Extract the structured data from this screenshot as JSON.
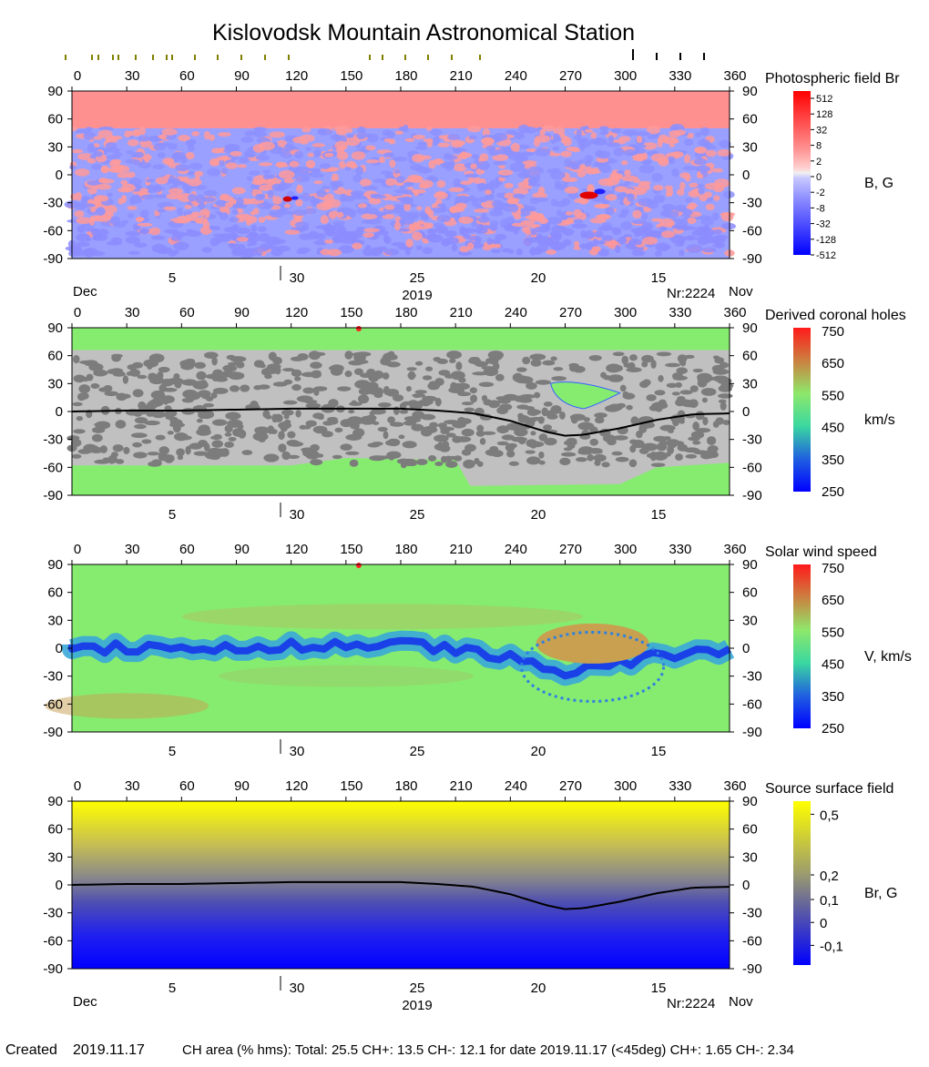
{
  "title": "Kislovodsk Mountain Astronomical Station",
  "lon_ticks": [
    "0",
    "30",
    "60",
    "90",
    "120",
    "150",
    "180",
    "210",
    "240",
    "270",
    "300",
    "330",
    "360"
  ],
  "lat_ticks": [
    "90",
    "60",
    "30",
    "0",
    "-30",
    "-60",
    "-90"
  ],
  "date_ticks": [
    "5",
    "30",
    "25",
    "20",
    "15"
  ],
  "bottom_labels": {
    "left": "Dec",
    "center": "2019",
    "rot": "Nr:2224",
    "right": "Nov"
  },
  "panels": [
    {
      "name": "photospheric",
      "title": "Photospheric field Br",
      "unit": "B, G",
      "scale": [
        "512",
        "128",
        "32",
        "8",
        "2",
        "0",
        "-2",
        "-8",
        "-32",
        "-128",
        "-512"
      ]
    },
    {
      "name": "coronal-holes",
      "title": "Derived coronal holes",
      "unit": "km/s",
      "scale": [
        "750",
        "650",
        "550",
        "450",
        "350",
        "250"
      ]
    },
    {
      "name": "solar-wind",
      "title": "Solar wind speed",
      "unit": "V, km/s",
      "scale": [
        "750",
        "650",
        "550",
        "450",
        "350",
        "250"
      ]
    },
    {
      "name": "source-surface",
      "title": "Source surface field",
      "unit": "Br, G",
      "scale": [
        "0,5",
        "0,2",
        "0,1",
        "0",
        "-0,1"
      ]
    }
  ],
  "footer": {
    "created_label": "Created",
    "created_date": "2019.11.17",
    "stats": "CH area (% hms): Total: 25.5 CH+: 13.5   CH-: 12.1 for date 2019.11.17 (<45deg) CH+: 1.65    CH-: 2.34"
  },
  "chart_data": [
    {
      "type": "heatmap",
      "title": "Photospheric field Br",
      "xlabel": "",
      "ylabel": "",
      "xlim": [
        0,
        360
      ],
      "ylim": [
        -90,
        90
      ],
      "colorbar_label": "B, G",
      "colorbar_ticks": [
        512,
        128,
        32,
        8,
        2,
        0,
        -2,
        -8,
        -32,
        -128,
        -512
      ]
    },
    {
      "type": "heatmap",
      "title": "Derived coronal holes",
      "xlim": [
        0,
        360
      ],
      "ylim": [
        -90,
        90
      ],
      "colorbar_label": "km/s",
      "colorbar_range": [
        250,
        750
      ],
      "neutral_line": {
        "x": [
          0,
          30,
          60,
          90,
          120,
          150,
          180,
          200,
          220,
          240,
          260,
          270,
          280,
          300,
          320,
          340,
          360
        ],
        "y": [
          0,
          1,
          1,
          2,
          3,
          3,
          3,
          1,
          -2,
          -10,
          -22,
          -26,
          -25,
          -18,
          -9,
          -3,
          -2
        ]
      }
    },
    {
      "type": "heatmap",
      "title": "Solar wind speed",
      "xlim": [
        0,
        360
      ],
      "ylim": [
        -90,
        90
      ],
      "colorbar_label": "V, km/s",
      "colorbar_range": [
        250,
        750
      ]
    },
    {
      "type": "heatmap",
      "title": "Source surface field",
      "xlim": [
        0,
        360
      ],
      "ylim": [
        -90,
        90
      ],
      "colorbar_label": "Br, G",
      "colorbar_ticks": [
        0.5,
        0.2,
        0.1,
        0,
        -0.1
      ],
      "neutral_line": {
        "x": [
          0,
          30,
          60,
          90,
          120,
          150,
          180,
          200,
          220,
          240,
          260,
          270,
          280,
          300,
          320,
          340,
          360
        ],
        "y": [
          0,
          1,
          1,
          2,
          3,
          3,
          3,
          1,
          -2,
          -10,
          -22,
          -26,
          -25,
          -18,
          -9,
          -3,
          -2
        ]
      }
    }
  ]
}
